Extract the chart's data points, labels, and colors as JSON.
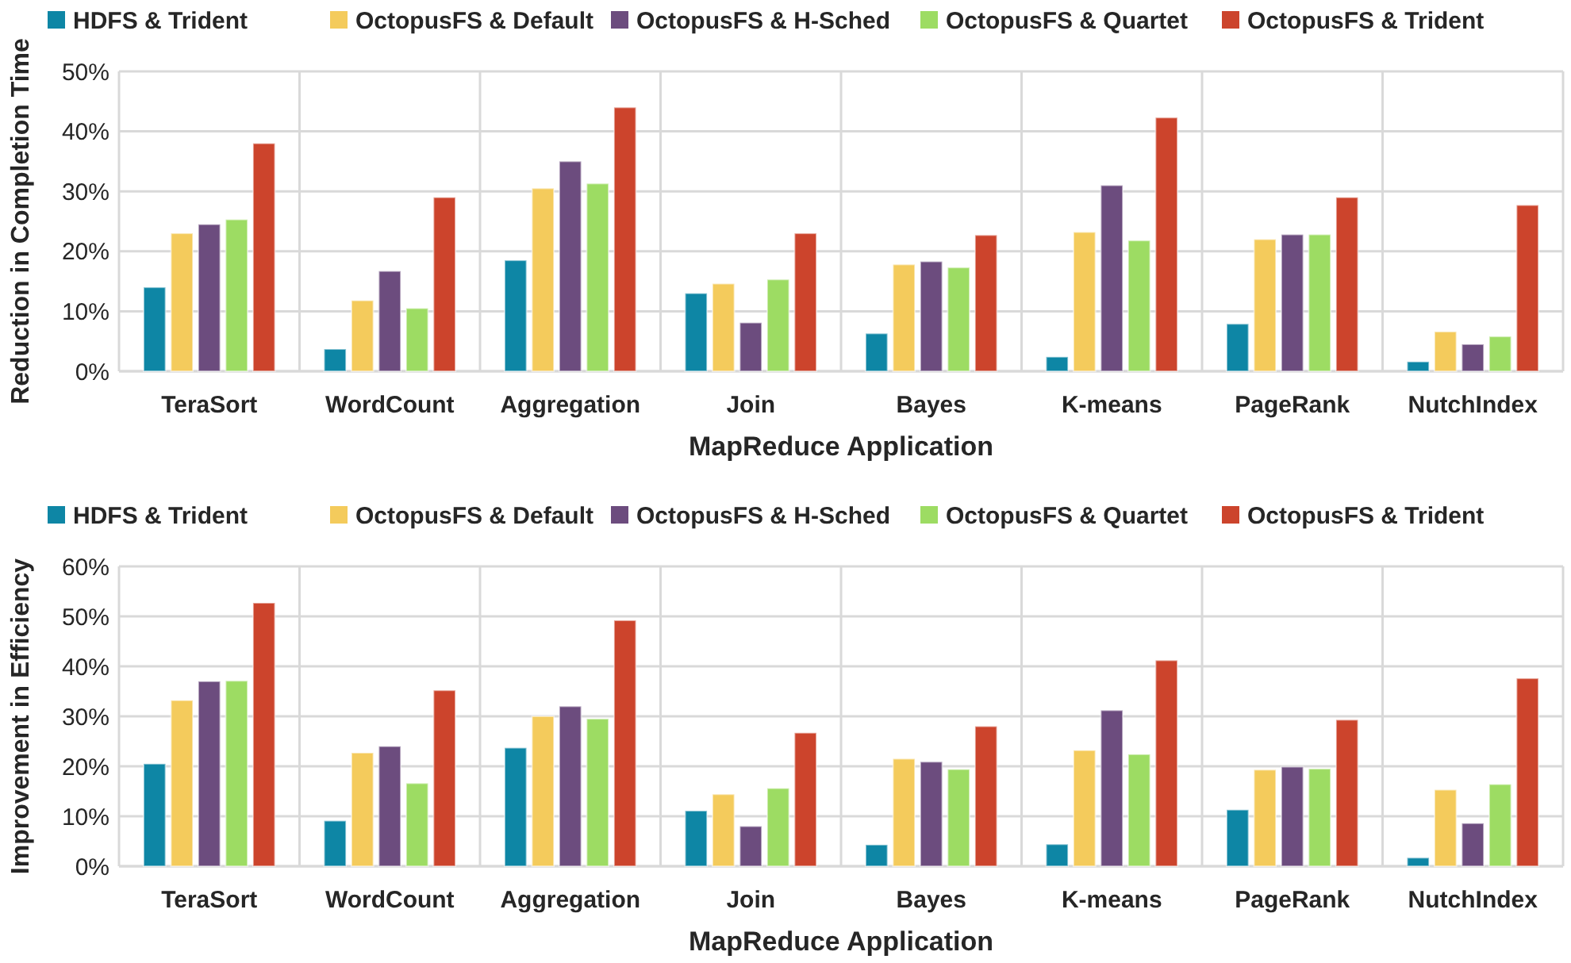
{
  "chart_data": [
    {
      "type": "bar",
      "xlabel": "MapReduce Application",
      "ylabel": "Reduction in Completion Time",
      "categories": [
        "TeraSort",
        "WordCount",
        "Aggregation",
        "Join",
        "Bayes",
        "K-means",
        "PageRank",
        "NutchIndex"
      ],
      "ylim": [
        0,
        50
      ],
      "yticks": [
        {
          "value": 0,
          "label": "0%"
        },
        {
          "value": 10,
          "label": "10%"
        },
        {
          "value": 20,
          "label": "20%"
        },
        {
          "value": 30,
          "label": "30%"
        },
        {
          "value": 40,
          "label": "40%"
        },
        {
          "value": 50,
          "label": "50%"
        }
      ],
      "grid": true,
      "legend": "top",
      "series": [
        {
          "name": "HDFS & Trident",
          "color": "#0e86a5",
          "values": [
            14,
            3.7,
            18.5,
            13,
            6.3,
            2.4,
            7.9,
            1.6
          ]
        },
        {
          "name": "OctopusFS & Default",
          "color": "#f4cb5c",
          "values": [
            23,
            11.8,
            30.5,
            14.6,
            17.8,
            23.2,
            22,
            6.6
          ]
        },
        {
          "name": "OctopusFS & H-Sched",
          "color": "#6c4c7e",
          "values": [
            24.5,
            16.7,
            35,
            8.1,
            18.3,
            31,
            22.8,
            4.5
          ]
        },
        {
          "name": "OctopusFS & Quartet",
          "color": "#9ddc63",
          "values": [
            25.3,
            10.5,
            31.3,
            15.3,
            17.3,
            21.8,
            22.8,
            5.8
          ]
        },
        {
          "name": "OctopusFS & Trident",
          "color": "#cc442c",
          "values": [
            38,
            29,
            44,
            23,
            22.7,
            42.3,
            29,
            27.7
          ]
        }
      ]
    },
    {
      "type": "bar",
      "xlabel": "MapReduce Application",
      "ylabel": "Improvement in Efficiency",
      "categories": [
        "TeraSort",
        "WordCount",
        "Aggregation",
        "Join",
        "Bayes",
        "K-means",
        "PageRank",
        "NutchIndex"
      ],
      "ylim": [
        0,
        60
      ],
      "yticks": [
        {
          "value": 0,
          "label": "0%"
        },
        {
          "value": 10,
          "label": "10%"
        },
        {
          "value": 20,
          "label": "20%"
        },
        {
          "value": 30,
          "label": "30%"
        },
        {
          "value": 40,
          "label": "40%"
        },
        {
          "value": 50,
          "label": "50%"
        },
        {
          "value": 60,
          "label": "60%"
        }
      ],
      "grid": true,
      "legend": "top",
      "series": [
        {
          "name": "HDFS & Trident",
          "color": "#0e86a5",
          "values": [
            20.5,
            9.1,
            23.7,
            11.1,
            4.3,
            4.4,
            11.3,
            1.7
          ]
        },
        {
          "name": "OctopusFS & Default",
          "color": "#f4cb5c",
          "values": [
            33.2,
            22.7,
            30,
            14.4,
            21.5,
            23.2,
            19.3,
            15.3
          ]
        },
        {
          "name": "OctopusFS & H-Sched",
          "color": "#6c4c7e",
          "values": [
            37,
            24,
            32,
            8,
            20.9,
            31.2,
            19.9,
            8.6
          ]
        },
        {
          "name": "OctopusFS & Quartet",
          "color": "#9ddc63",
          "values": [
            37.1,
            16.6,
            29.5,
            15.6,
            19.4,
            22.4,
            19.5,
            16.4
          ]
        },
        {
          "name": "OctopusFS & Trident",
          "color": "#cc442c",
          "values": [
            52.7,
            35.2,
            49.2,
            26.7,
            28,
            41.2,
            29.3,
            37.6
          ]
        }
      ]
    }
  ]
}
